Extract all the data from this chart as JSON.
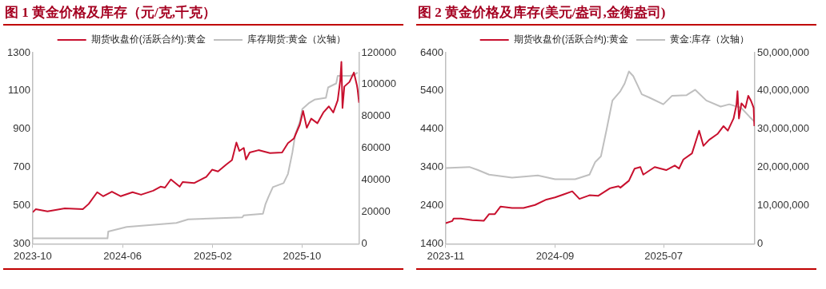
{
  "chart_data": [
    {
      "type": "line",
      "title": "图 1 黄金价格及库存（元/克,千克）",
      "legend": "top",
      "marker": "none",
      "xlim": [
        "2023-10-01",
        "2026-03-05"
      ],
      "xticks": [
        "2023-10",
        "2024-06",
        "2025-02",
        "2025-10"
      ],
      "ylim": [
        300,
        1300
      ],
      "yticks": [
        300,
        500,
        700,
        900,
        1100,
        1300
      ],
      "y2lim": [
        0,
        120000
      ],
      "y2ticks": [
        0,
        20000,
        40000,
        60000,
        80000,
        100000,
        120000
      ],
      "series": [
        {
          "name": "期货收盘价(活跃合约):黄金",
          "color": "#c8102e",
          "x": [
            "2023-10-01",
            "2023-10-09",
            "2023-11-10",
            "2023-12-27",
            "2024-02-14",
            "2024-03-01",
            "2024-03-24",
            "2024-04-09",
            "2024-05-03",
            "2024-05-27",
            "2024-06-28",
            "2024-07-21",
            "2024-08-23",
            "2024-09-12",
            "2024-09-24",
            "2024-10-10",
            "2024-11-03",
            "2024-11-11",
            "2024-12-12",
            "2025-01-14",
            "2025-01-30",
            "2025-02-15",
            "2025-03-09",
            "2025-03-25",
            "2025-04-06",
            "2025-04-14",
            "2025-04-26",
            "2025-05-02",
            "2025-05-12",
            "2025-06-05",
            "2025-07-06",
            "2025-08-08",
            "2025-08-24",
            "2025-09-09",
            "2025-09-25",
            "2025-10-04",
            "2025-10-14",
            "2025-10-26",
            "2025-11-12",
            "2025-11-28",
            "2025-12-13",
            "2025-12-25",
            "2026-01-06",
            "2026-01-13",
            "2026-01-16",
            "2026-01-19",
            "2026-01-24",
            "2026-02-07",
            "2026-02-19",
            "2026-02-27",
            "2026-03-01",
            "2026-03-05"
          ],
          "values": [
            465,
            481,
            470,
            485,
            481,
            509,
            570,
            549,
            573,
            549,
            570,
            557,
            578,
            599,
            594,
            637,
            599,
            623,
            618,
            650,
            688,
            679,
            714,
            738,
            830,
            786,
            802,
            741,
            778,
            790,
            775,
            778,
            827,
            851,
            923,
            995,
            907,
            955,
            931,
            987,
            1019,
            987,
            1051,
            1156,
            1252,
            1011,
            1123,
            1147,
            1196,
            1131,
            1107,
            1038
          ]
        },
        {
          "name": "库存期货:黄金（次轴）",
          "color": "#bfbfbf",
          "axis": "y2",
          "x": [
            "2023-10-01",
            "2024-04-21",
            "2024-04-23",
            "2024-06-12",
            "2024-10-25",
            "2024-11-26",
            "2025-04-22",
            "2025-04-26",
            "2025-06-17",
            "2025-06-24",
            "2025-07-02",
            "2025-07-14",
            "2025-08-12",
            "2025-08-24",
            "2025-09-05",
            "2025-09-13",
            "2025-09-25",
            "2025-10-02",
            "2025-10-19",
            "2025-11-04",
            "2025-12-05",
            "2025-12-11",
            "2026-01-02",
            "2026-01-06",
            "2026-02-07",
            "2026-02-19",
            "2026-03-01"
          ],
          "values": [
            3400,
            3400,
            7700,
            10600,
            13100,
            15400,
            16600,
            17900,
            18900,
            25000,
            29500,
            35600,
            38100,
            43900,
            57400,
            69000,
            76600,
            84700,
            88200,
            90500,
            91700,
            98200,
            100700,
            105500,
            105500,
            106000,
            107500
          ]
        }
      ]
    },
    {
      "type": "line",
      "title": "图 2 黄金价格及库存(美元/盎司,金衡盎司)",
      "legend": "top",
      "marker": "none",
      "xlim": [
        "2023-11-01",
        "2026-03-12"
      ],
      "xticks": [
        "2023-11",
        "2024-09",
        "2025-07"
      ],
      "ylim": [
        1400,
        6400
      ],
      "yticks": [
        1400,
        2400,
        3400,
        4400,
        5400,
        6400
      ],
      "y2lim": [
        0,
        50000000
      ],
      "y2ticks": [
        0,
        {
          "value": 10000000,
          "label": "10,000,000"
        },
        {
          "value": 20000000,
          "label": "20,000,000"
        },
        {
          "value": 30000000,
          "label": "30,000,000"
        },
        {
          "value": 40000000,
          "label": "40,000,000"
        },
        {
          "value": 50000000,
          "label": "50,000,000"
        }
      ],
      "series": [
        {
          "name": "期货收盘价(活跃合约):黄金",
          "color": "#c8102e",
          "x": [
            "2023-11-01",
            "2023-11-19",
            "2023-11-23",
            "2023-12-13",
            "2024-01-14",
            "2024-02-15",
            "2024-03-01",
            "2024-03-17",
            "2024-04-02",
            "2024-05-04",
            "2024-06-05",
            "2024-07-07",
            "2024-08-08",
            "2024-09-01",
            "2024-09-25",
            "2024-10-19",
            "2024-11-08",
            "2024-12-06",
            "2024-12-30",
            "2025-02-01",
            "2025-02-25",
            "2025-03-02",
            "2025-03-26",
            "2025-04-03",
            "2025-04-11",
            "2025-04-27",
            "2025-05-05",
            "2025-06-06",
            "2025-07-08",
            "2025-08-01",
            "2025-08-13",
            "2025-08-25",
            "2025-09-18",
            "2025-10-08",
            "2025-10-20",
            "2025-11-05",
            "2025-11-29",
            "2025-12-15",
            "2025-12-27",
            "2026-01-12",
            "2026-01-20",
            "2026-01-23",
            "2026-01-27",
            "2026-02-03",
            "2026-02-14",
            "2026-02-22",
            "2026-03-01",
            "2026-03-06",
            "2026-03-09",
            "2026-03-11"
          ],
          "values": [
            1940,
            1995,
            2059,
            2059,
            2019,
            2003,
            2178,
            2178,
            2376,
            2337,
            2337,
            2416,
            2559,
            2614,
            2694,
            2773,
            2575,
            2670,
            2654,
            2852,
            2908,
            2868,
            3051,
            3210,
            3368,
            3408,
            3210,
            3408,
            3329,
            3448,
            3368,
            3606,
            3765,
            4360,
            3963,
            4122,
            4281,
            4479,
            4360,
            4678,
            5035,
            5392,
            4678,
            5075,
            4956,
            5273,
            5154,
            5035,
            4956,
            4479
          ]
        },
        {
          "name": "黄金:库存（次轴）",
          "color": "#bfbfbf",
          "axis": "y2",
          "x": [
            "2023-11-01",
            "2024-01-06",
            "2024-01-30",
            "2024-03-01",
            "2024-05-04",
            "2024-07-15",
            "2024-09-01",
            "2024-10-27",
            "2024-12-06",
            "2024-12-22",
            "2025-01-07",
            "2025-01-23",
            "2025-02-08",
            "2025-03-02",
            "2025-03-14",
            "2025-03-26",
            "2025-04-07",
            "2025-04-19",
            "2025-05-01",
            "2025-05-21",
            "2025-06-30",
            "2025-07-24",
            "2025-09-03",
            "2025-09-27",
            "2025-10-28",
            "2025-12-07",
            "2025-12-31",
            "2026-02-02",
            "2026-02-26",
            "2026-03-11"
          ],
          "values": [
            19800000,
            20100000,
            19300000,
            18100000,
            17300000,
            17900000,
            16900000,
            16900000,
            18100000,
            21400000,
            22900000,
            30000000,
            37500000,
            39900000,
            41900000,
            45100000,
            43900000,
            41500000,
            39100000,
            38300000,
            36500000,
            38700000,
            38900000,
            40300000,
            37500000,
            35900000,
            36500000,
            35600000,
            33200000,
            32000000
          ]
        }
      ]
    }
  ]
}
